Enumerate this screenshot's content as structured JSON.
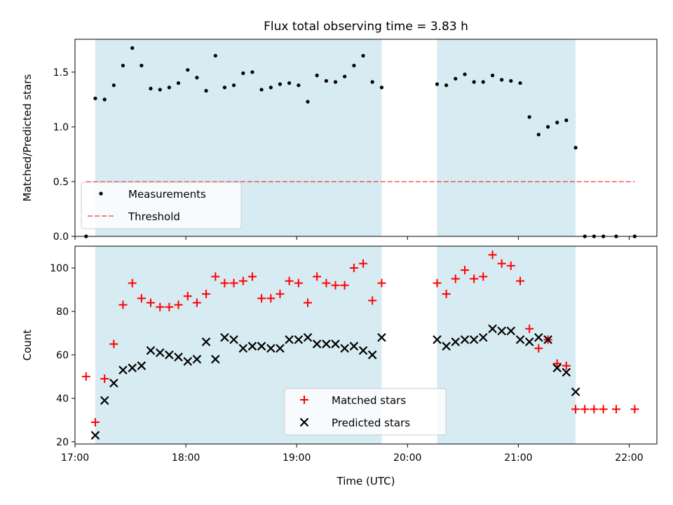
{
  "title": "Flux total observing time = 3.83 h",
  "colors": {
    "span": "#add8e6",
    "measurement": "#000000",
    "threshold": "#ff0000",
    "matched": "#ff0000",
    "predicted": "#000000"
  },
  "chart_data": [
    {
      "type": "scatter",
      "ylabel": "Matched/Predicted stars",
      "xlim": [
        17.0,
        22.25
      ],
      "ylim": [
        0.0,
        1.8
      ],
      "yticks": [
        0.0,
        0.5,
        1.0,
        1.5
      ],
      "ytick_labels": [
        "0.0",
        "0.5",
        "1.0",
        "1.5"
      ],
      "observing_spans": [
        [
          17.183,
          19.767
        ],
        [
          20.267,
          21.517
        ]
      ],
      "legend_position": "lower-left",
      "series": [
        {
          "name": "Measurements",
          "marker": "dot",
          "x": [
            17.1,
            17.183,
            17.267,
            17.35,
            17.433,
            17.517,
            17.6,
            17.683,
            17.767,
            17.85,
            17.933,
            18.017,
            18.1,
            18.183,
            18.267,
            18.35,
            18.433,
            18.517,
            18.6,
            18.683,
            18.767,
            18.85,
            18.933,
            19.017,
            19.1,
            19.183,
            19.267,
            19.35,
            19.433,
            19.517,
            19.6,
            19.683,
            19.767,
            20.267,
            20.35,
            20.433,
            20.517,
            20.6,
            20.683,
            20.767,
            20.85,
            20.933,
            21.017,
            21.1,
            21.183,
            21.267,
            21.35,
            21.433,
            21.517,
            21.6,
            21.683,
            21.767,
            21.883,
            22.05
          ],
          "y": [
            0.0,
            1.26,
            1.25,
            1.38,
            1.56,
            1.72,
            1.56,
            1.35,
            1.34,
            1.36,
            1.4,
            1.52,
            1.45,
            1.33,
            1.65,
            1.36,
            1.38,
            1.49,
            1.5,
            1.34,
            1.36,
            1.39,
            1.4,
            1.38,
            1.23,
            1.47,
            1.42,
            1.41,
            1.46,
            1.56,
            1.65,
            1.41,
            1.36,
            1.39,
            1.38,
            1.44,
            1.48,
            1.41,
            1.41,
            1.47,
            1.43,
            1.42,
            1.4,
            1.09,
            0.93,
            1.0,
            1.04,
            1.06,
            0.81,
            0.0,
            0.0,
            0.0,
            0.0,
            0.0
          ]
        },
        {
          "name": "Threshold",
          "marker": "dashed-line",
          "x": [
            17.1,
            22.05
          ],
          "y": [
            0.5,
            0.5
          ]
        }
      ]
    },
    {
      "type": "scatter",
      "ylabel": "Count",
      "xlabel": "Time (UTC)",
      "xlim": [
        17.0,
        22.25
      ],
      "ylim": [
        19,
        110
      ],
      "yticks": [
        20,
        40,
        60,
        80,
        100
      ],
      "ytick_labels": [
        "20",
        "40",
        "60",
        "80",
        "100"
      ],
      "xticks": [
        17,
        18,
        19,
        20,
        21,
        22
      ],
      "xtick_labels": [
        "17:00",
        "18:00",
        "19:00",
        "20:00",
        "21:00",
        "22:00"
      ],
      "observing_spans": [
        [
          17.183,
          19.767
        ],
        [
          20.267,
          21.517
        ]
      ],
      "legend_position": "lower-center",
      "series": [
        {
          "name": "Matched stars",
          "marker": "plus",
          "x": [
            17.1,
            17.183,
            17.267,
            17.35,
            17.433,
            17.517,
            17.6,
            17.683,
            17.767,
            17.85,
            17.933,
            18.017,
            18.1,
            18.183,
            18.267,
            18.35,
            18.433,
            18.517,
            18.6,
            18.683,
            18.767,
            18.85,
            18.933,
            19.017,
            19.1,
            19.183,
            19.267,
            19.35,
            19.433,
            19.517,
            19.6,
            19.683,
            19.767,
            20.267,
            20.35,
            20.433,
            20.517,
            20.6,
            20.683,
            20.767,
            20.85,
            20.933,
            21.017,
            21.1,
            21.183,
            21.267,
            21.35,
            21.433,
            21.517,
            21.6,
            21.683,
            21.767,
            21.883,
            22.05
          ],
          "y": [
            50,
            29,
            49,
            65,
            83,
            93,
            86,
            84,
            82,
            82,
            83,
            87,
            84,
            88,
            96,
            93,
            93,
            94,
            96,
            86,
            86,
            88,
            94,
            93,
            84,
            96,
            93,
            92,
            92,
            100,
            102,
            85,
            93,
            93,
            88,
            95,
            99,
            95,
            96,
            106,
            102,
            101,
            94,
            72,
            63,
            67,
            56,
            55,
            35,
            35,
            35,
            35,
            35,
            35
          ]
        },
        {
          "name": "Predicted stars",
          "marker": "x",
          "x": [
            17.183,
            17.267,
            17.35,
            17.433,
            17.517,
            17.6,
            17.683,
            17.767,
            17.85,
            17.933,
            18.017,
            18.1,
            18.183,
            18.267,
            18.35,
            18.433,
            18.517,
            18.6,
            18.683,
            18.767,
            18.85,
            18.933,
            19.017,
            19.1,
            19.183,
            19.267,
            19.35,
            19.433,
            19.517,
            19.6,
            19.683,
            19.767,
            20.267,
            20.35,
            20.433,
            20.517,
            20.6,
            20.683,
            20.767,
            20.85,
            20.933,
            21.017,
            21.1,
            21.183,
            21.267,
            21.35,
            21.433,
            21.517
          ],
          "y": [
            23,
            39,
            47,
            53,
            54,
            55,
            62,
            61,
            60,
            59,
            57,
            58,
            66,
            58,
            68,
            67,
            63,
            64,
            64,
            63,
            63,
            67,
            67,
            68,
            65,
            65,
            65,
            63,
            64,
            62,
            60,
            68,
            67,
            64,
            66,
            67,
            67,
            68,
            72,
            71,
            71,
            67,
            66,
            68,
            67,
            54,
            52,
            43
          ]
        }
      ]
    }
  ]
}
